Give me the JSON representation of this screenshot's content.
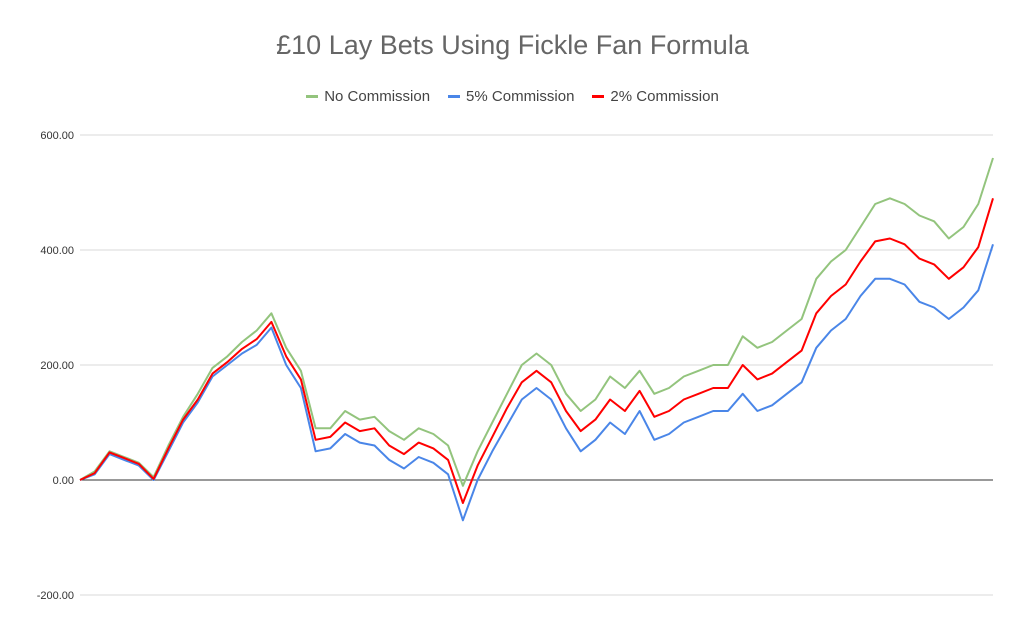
{
  "chart_data": {
    "type": "line",
    "title": "£10 Lay Bets Using Fickle Fan Formula",
    "xlabel": "",
    "ylabel": "",
    "ylim": [
      -200,
      600
    ],
    "yticks": [
      "600.00",
      "400.00",
      "200.00",
      "0.00",
      "-200.00"
    ],
    "ytick_values": [
      600,
      400,
      200,
      0,
      -200
    ],
    "grid": true,
    "legend_position": "top",
    "x": [
      0,
      5,
      10,
      15,
      20,
      25,
      30,
      35,
      40,
      45,
      50,
      55,
      60,
      65,
      70,
      75,
      80,
      85,
      90,
      95,
      100,
      105,
      110,
      115,
      120,
      125,
      130,
      135,
      140,
      145,
      150,
      155,
      160,
      165,
      170,
      175,
      180,
      185,
      190,
      195,
      200,
      205,
      210,
      215,
      220,
      225,
      230,
      235,
      240,
      245,
      250,
      255,
      260,
      265,
      270,
      275,
      280,
      285,
      290,
      295,
      300,
      305,
      310
    ],
    "series": [
      {
        "name": "No Commission",
        "color": "#93c47d",
        "values": [
          0,
          15,
          50,
          40,
          30,
          5,
          60,
          110,
          150,
          195,
          215,
          240,
          260,
          290,
          230,
          190,
          90,
          90,
          120,
          105,
          110,
          85,
          70,
          90,
          80,
          60,
          -10,
          50,
          100,
          150,
          200,
          220,
          200,
          150,
          120,
          140,
          180,
          160,
          190,
          150,
          160,
          180,
          190,
          200,
          200,
          250,
          230,
          240,
          260,
          280,
          350,
          380,
          400,
          440,
          480,
          490,
          480,
          460,
          450,
          420,
          440,
          480,
          560
        ]
      },
      {
        "name": "5% Commission",
        "color": "#4a86e8",
        "values": [
          0,
          10,
          45,
          35,
          25,
          0,
          50,
          100,
          135,
          180,
          200,
          220,
          235,
          265,
          200,
          160,
          50,
          55,
          80,
          65,
          60,
          35,
          20,
          40,
          30,
          10,
          -70,
          0,
          50,
          95,
          140,
          160,
          140,
          90,
          50,
          70,
          100,
          80,
          120,
          70,
          80,
          100,
          110,
          120,
          120,
          150,
          120,
          130,
          150,
          170,
          230,
          260,
          280,
          320,
          350,
          350,
          340,
          310,
          300,
          280,
          300,
          330,
          410
        ]
      },
      {
        "name": "2% Commission",
        "color": "#ff0000",
        "values": [
          0,
          12,
          48,
          38,
          28,
          2,
          55,
          105,
          140,
          185,
          205,
          228,
          245,
          275,
          215,
          175,
          70,
          75,
          100,
          85,
          90,
          60,
          45,
          65,
          55,
          35,
          -40,
          25,
          75,
          125,
          170,
          190,
          170,
          120,
          85,
          105,
          140,
          120,
          155,
          110,
          120,
          140,
          150,
          160,
          160,
          200,
          175,
          185,
          205,
          225,
          290,
          320,
          340,
          380,
          415,
          420,
          410,
          385,
          375,
          350,
          370,
          405,
          490
        ]
      }
    ]
  }
}
